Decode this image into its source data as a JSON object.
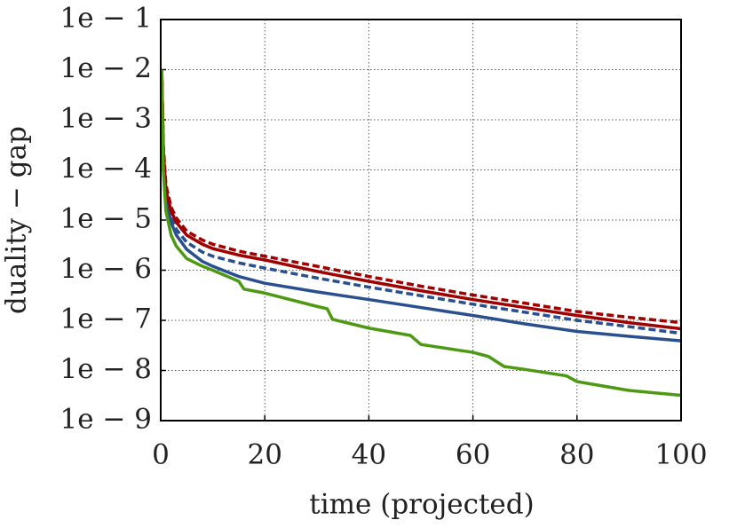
{
  "chart_data": {
    "type": "line",
    "xlabel": "time (projected)",
    "ylabel": "duality − gap",
    "xlim": [
      0,
      100
    ],
    "xticks": [
      0,
      20,
      40,
      60,
      80,
      100
    ],
    "ylim": [
      1e-09,
      0.1
    ],
    "log_y": true,
    "grid": true,
    "yticks": [
      {
        "value": 0.1,
        "label": "1e − 1"
      },
      {
        "value": 0.01,
        "label": "1e − 2"
      },
      {
        "value": 0.001,
        "label": "1e − 3"
      },
      {
        "value": 0.0001,
        "label": "1e − 4"
      },
      {
        "value": 1e-05,
        "label": "1e − 5"
      },
      {
        "value": 1e-06,
        "label": "1e − 6"
      },
      {
        "value": 1e-07,
        "label": "1e − 7"
      },
      {
        "value": 1e-08,
        "label": "1e − 8"
      },
      {
        "value": 1e-09,
        "label": "1e − 9"
      }
    ],
    "series": [
      {
        "color": "#2a4f8f",
        "dashed": false,
        "x": [
          0.2,
          0.5,
          1,
          2,
          3,
          5,
          8,
          10,
          15,
          20,
          30,
          40,
          50,
          60,
          70,
          80,
          90,
          100
        ],
        "values": [
          0.01,
          0.00015,
          2.5e-05,
          9e-06,
          5e-06,
          2.6e-06,
          1.5e-06,
          1.2e-06,
          7.5e-07,
          5.5e-07,
          3.7e-07,
          2.6e-07,
          1.8e-07,
          1.25e-07,
          8.5e-08,
          6e-08,
          4.8e-08,
          3.9e-08
        ]
      },
      {
        "color": "#2a4f8f",
        "dashed": true,
        "x": [
          0.2,
          0.5,
          1,
          2,
          3,
          5,
          8,
          10,
          15,
          20,
          30,
          40,
          50,
          60,
          70,
          80,
          90,
          100
        ],
        "values": [
          0.01,
          0.0002,
          3e-05,
          1.1e-05,
          6.5e-06,
          3.6e-06,
          2.3e-06,
          1.9e-06,
          1.4e-06,
          1.1e-06,
          7e-07,
          4.6e-07,
          3.1e-07,
          2.1e-07,
          1.45e-07,
          1e-07,
          7.5e-08,
          5.5e-08
        ]
      },
      {
        "color": "#a00000",
        "dashed": false,
        "x": [
          0.2,
          0.5,
          1,
          2,
          3,
          5,
          8,
          10,
          15,
          20,
          30,
          40,
          50,
          60,
          70,
          80,
          90,
          100
        ],
        "values": [
          0.01,
          0.00025,
          4e-05,
          1.5e-05,
          9e-06,
          5e-06,
          3.3e-06,
          2.7e-06,
          2e-06,
          1.6e-06,
          9.5e-07,
          6e-07,
          3.9e-07,
          2.6e-07,
          1.8e-07,
          1.25e-07,
          9e-08,
          6.8e-08
        ]
      },
      {
        "color": "#a00000",
        "dashed": true,
        "x": [
          0.2,
          0.5,
          1,
          2,
          3,
          5,
          8,
          10,
          15,
          20,
          30,
          40,
          50,
          60,
          70,
          80,
          90,
          100
        ],
        "values": [
          0.01,
          0.0003,
          5e-05,
          1.8e-05,
          1.1e-05,
          6e-06,
          4e-06,
          3.3e-06,
          2.4e-06,
          1.9e-06,
          1.2e-06,
          7.5e-07,
          4.8e-07,
          3.2e-07,
          2.2e-07,
          1.5e-07,
          1.15e-07,
          9e-08
        ]
      },
      {
        "color": "#4d9a12",
        "dashed": false,
        "x": [
          0.2,
          0.5,
          1,
          2,
          3,
          5,
          8,
          10,
          15,
          16,
          20,
          30,
          32,
          33,
          40,
          48,
          50,
          60,
          63,
          66,
          70,
          78,
          80,
          90,
          100
        ],
        "values": [
          0.01,
          0.0001,
          1.5e-05,
          5e-06,
          3e-06,
          1.7e-06,
          1.2e-06,
          1e-06,
          6e-07,
          4.2e-07,
          3.5e-07,
          1.9e-07,
          1.7e-07,
          1.05e-07,
          7e-08,
          5e-08,
          3.3e-08,
          2.3e-08,
          1.9e-08,
          1.2e-08,
          1.05e-08,
          7.8e-09,
          6e-09,
          4e-09,
          3.2e-09
        ]
      }
    ]
  }
}
